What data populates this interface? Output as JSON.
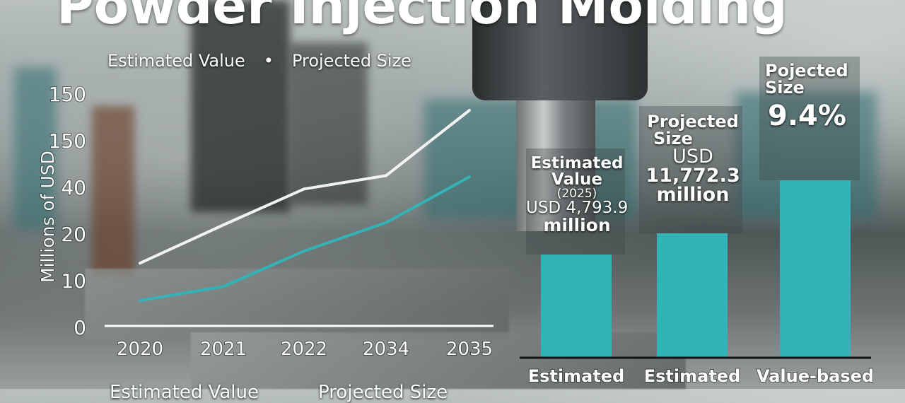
{
  "title": "Powder Injection Molding",
  "colors": {
    "teal": "#33b3b5",
    "white_line": "#f2f2f2",
    "axis": "#ffffff"
  },
  "chart_data": [
    {
      "type": "line",
      "legend": [
        "Estimated Value",
        "Projected Size"
      ],
      "legend_placement": "top",
      "ylabel": "Millions of USD",
      "xlabel": "",
      "categories": [
        "2020",
        "2021",
        "2022",
        "2034",
        "2035"
      ],
      "y_tick_labels": [
        "0",
        "10",
        "20",
        "40",
        "150",
        "150"
      ],
      "series": [
        {
          "color": "#f2f2f2",
          "values": [
            13.6,
            23.6,
            39,
            66,
            220
          ]
        },
        {
          "color": "#33b3b5",
          "values": [
            5.6,
            8.6,
            16.2,
            24.6,
            63
          ]
        }
      ],
      "grid": false
    },
    {
      "type": "bar",
      "categories": [
        "Estimated",
        "Estimated",
        "Value-based"
      ],
      "relative_values": [
        0.58,
        0.7,
        1.0
      ],
      "annotations": [
        {
          "lines": [
            "Estimated",
            "Value",
            "(2025)",
            "USD 4,793.9",
            "million"
          ]
        },
        {
          "lines": [
            "Projected",
            "Size",
            "USD",
            "11,772.3",
            "million"
          ]
        },
        {
          "lines": [
            "Pojected",
            "Size",
            "9.4%"
          ]
        }
      ],
      "color": "#33b3b5"
    }
  ],
  "bottom_caption": [
    "Estimated Value",
    "Projected Size"
  ]
}
